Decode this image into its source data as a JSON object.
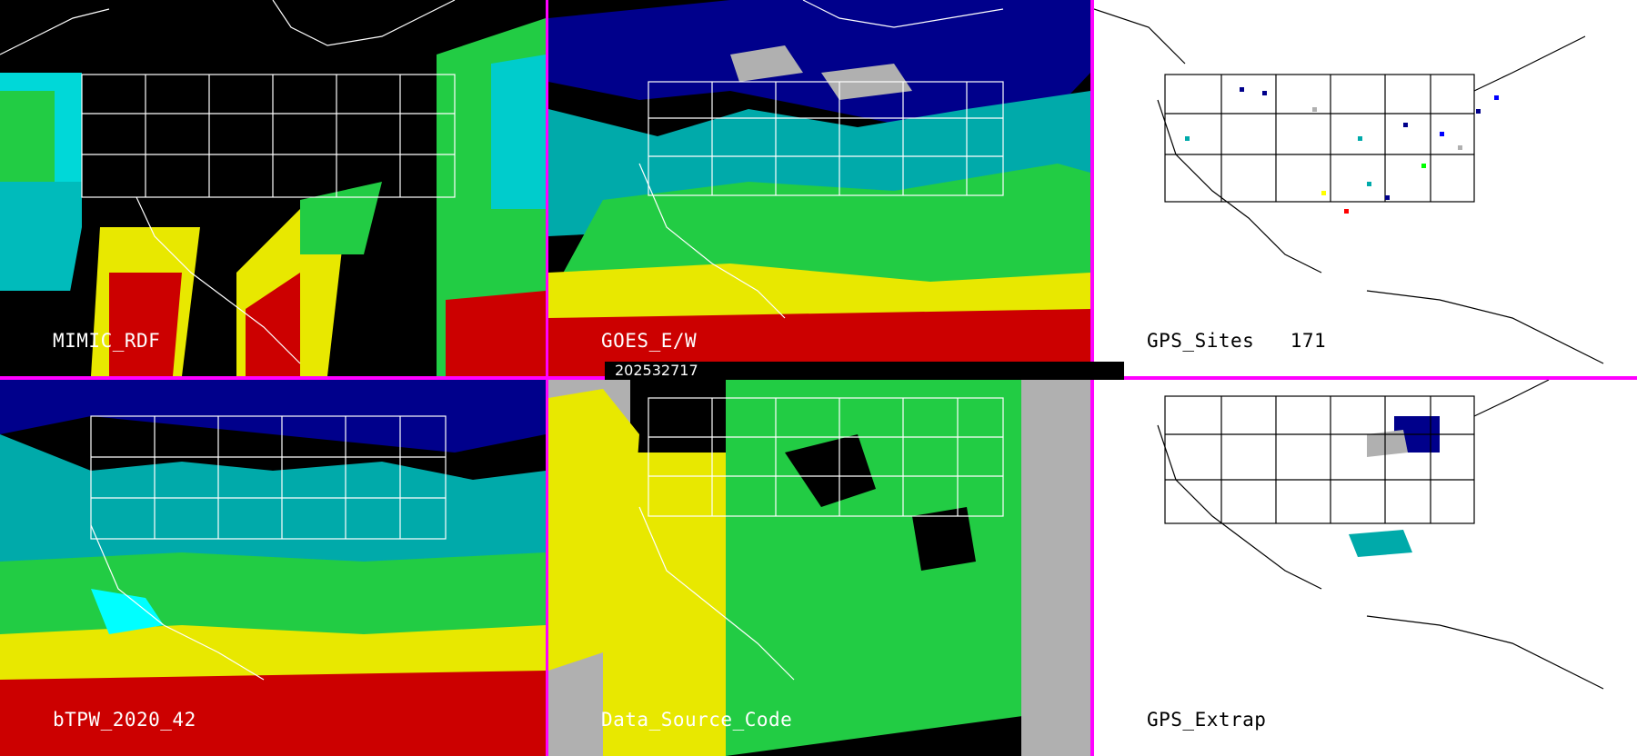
{
  "timestamp": "202532717",
  "panels": [
    {
      "label": "MIMIC_RDF"
    },
    {
      "label": "GOES_E/W"
    },
    {
      "label": "GPS_Sites",
      "count": "171"
    },
    {
      "label": "bTPW_2020_42"
    },
    {
      "label": "Data_Source_Code"
    },
    {
      "label": "GPS_Extrap"
    }
  ],
  "colors": {
    "divider": "#ff00ff",
    "background": "#000000",
    "map_outline": "#ffffff",
    "light_panel_bg": "#ffffff"
  },
  "color_scale": [
    "#00008b",
    "#0000ff",
    "#00ffff",
    "#00ff00",
    "#ffff00",
    "#ff0000",
    "#b0b0b0"
  ]
}
